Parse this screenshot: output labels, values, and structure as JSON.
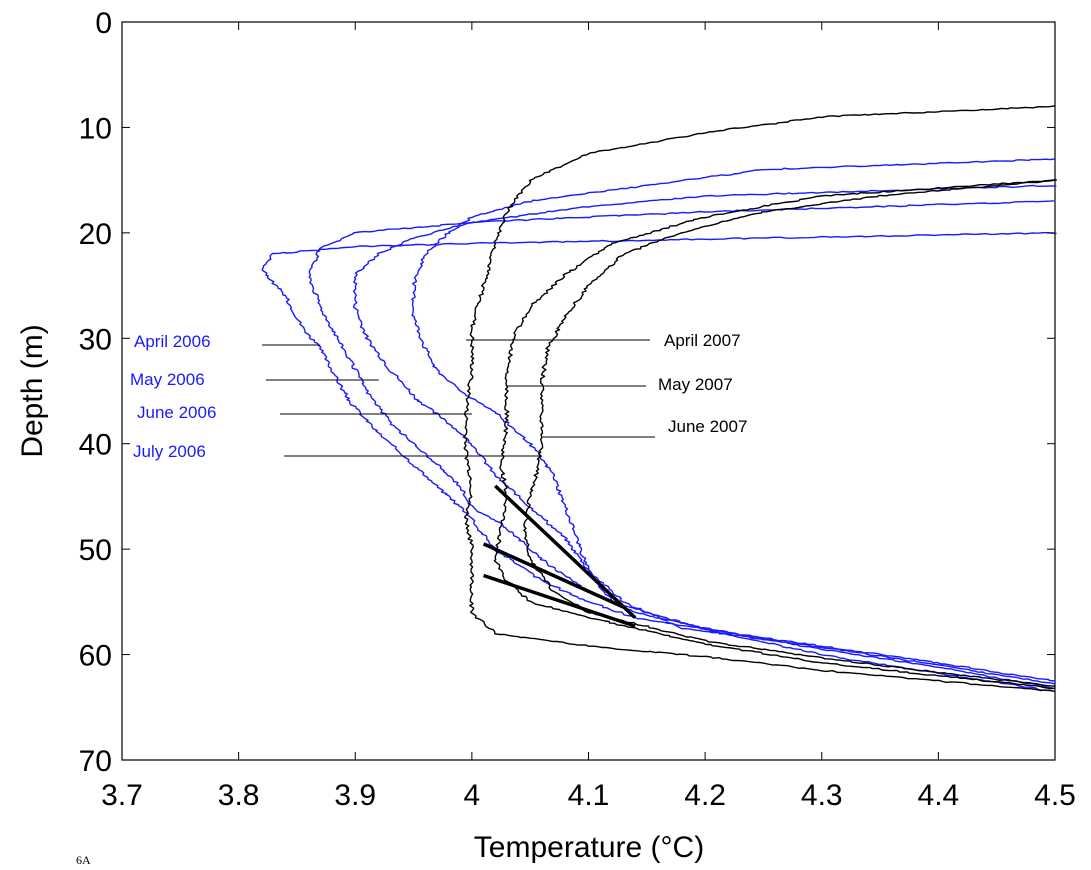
{
  "chart_data": {
    "type": "line",
    "title": "",
    "xlabel": "Temperature (°C)",
    "ylabel": "Depth (m)",
    "xlim": [
      3.7,
      4.5
    ],
    "ylim": [
      70,
      0
    ],
    "y_axis_inverted": true,
    "grid": false,
    "legend": "none",
    "xticks": [
      "3.7",
      "3.8",
      "3.9",
      "4",
      "4.1",
      "4.2",
      "4.3",
      "4.4",
      "4.5"
    ],
    "yticks": [
      "0",
      "10",
      "20",
      "30",
      "40",
      "50",
      "60",
      "70"
    ],
    "colors": {
      "2006": "#1a1aff",
      "2007": "#000000"
    },
    "series": [
      {
        "name": "April 2006",
        "color": "#1a1aff",
        "points": [
          [
            4.5,
            20
          ],
          [
            4.2,
            20.6
          ],
          [
            4.0,
            21.0
          ],
          [
            3.9,
            21.3
          ],
          [
            3.83,
            22.0
          ],
          [
            3.82,
            23.5
          ],
          [
            3.84,
            26
          ],
          [
            3.855,
            29
          ],
          [
            3.87,
            31
          ],
          [
            3.88,
            33
          ],
          [
            3.895,
            36
          ],
          [
            3.92,
            39
          ],
          [
            3.95,
            42
          ],
          [
            3.98,
            45
          ],
          [
            4.0,
            47
          ],
          [
            4.005,
            48
          ],
          [
            4.02,
            50
          ],
          [
            4.06,
            53
          ],
          [
            4.1,
            55
          ],
          [
            4.14,
            56.5
          ],
          [
            4.2,
            57.6
          ],
          [
            4.3,
            60
          ],
          [
            4.4,
            61.8
          ],
          [
            4.5,
            63.5
          ]
        ]
      },
      {
        "name": "May 2006",
        "color": "#1a1aff",
        "points": [
          [
            4.5,
            17
          ],
          [
            4.2,
            18
          ],
          [
            4.1,
            18.5
          ],
          [
            4.0,
            19.0
          ],
          [
            3.9,
            20
          ],
          [
            3.87,
            21.5
          ],
          [
            3.86,
            24
          ],
          [
            3.87,
            27
          ],
          [
            3.885,
            30
          ],
          [
            3.9,
            33
          ],
          [
            3.91,
            35
          ],
          [
            3.93,
            38
          ],
          [
            3.96,
            41
          ],
          [
            3.99,
            44
          ],
          [
            4.0,
            46
          ],
          [
            4.03,
            48
          ],
          [
            4.06,
            51
          ],
          [
            4.1,
            54
          ],
          [
            4.14,
            56
          ],
          [
            4.2,
            57.5
          ],
          [
            4.3,
            59.5
          ],
          [
            4.4,
            61.2
          ],
          [
            4.5,
            63.2
          ]
        ]
      },
      {
        "name": "June 2006",
        "color": "#1a1aff",
        "points": [
          [
            4.5,
            15.5
          ],
          [
            4.2,
            16.5
          ],
          [
            4.1,
            17.5
          ],
          [
            4.0,
            19.0
          ],
          [
            3.95,
            20.5
          ],
          [
            3.92,
            22
          ],
          [
            3.9,
            24
          ],
          [
            3.9,
            27
          ],
          [
            3.91,
            30
          ],
          [
            3.93,
            33
          ],
          [
            3.955,
            36
          ],
          [
            3.98,
            38
          ],
          [
            4.0,
            40
          ],
          [
            4.02,
            43
          ],
          [
            4.05,
            46
          ],
          [
            4.08,
            49
          ],
          [
            4.1,
            52
          ],
          [
            4.13,
            55
          ],
          [
            4.18,
            57.5
          ],
          [
            4.3,
            59.3
          ],
          [
            4.4,
            61
          ],
          [
            4.5,
            62.8
          ]
        ]
      },
      {
        "name": "July 2006",
        "color": "#1a1aff",
        "points": [
          [
            4.5,
            13
          ],
          [
            4.25,
            14
          ],
          [
            4.15,
            15.5
          ],
          [
            4.05,
            17
          ],
          [
            4.0,
            18.5
          ],
          [
            3.98,
            20
          ],
          [
            3.96,
            22
          ],
          [
            3.95,
            25
          ],
          [
            3.95,
            28
          ],
          [
            3.96,
            31
          ],
          [
            3.97,
            33
          ],
          [
            3.99,
            35
          ],
          [
            4.02,
            37
          ],
          [
            4.05,
            40
          ],
          [
            4.07,
            43
          ],
          [
            4.08,
            46
          ],
          [
            4.09,
            49
          ],
          [
            4.1,
            52
          ],
          [
            4.12,
            55
          ],
          [
            4.2,
            57.6
          ],
          [
            4.3,
            59.2
          ],
          [
            4.4,
            60.8
          ],
          [
            4.5,
            62.5
          ]
        ]
      },
      {
        "name": "April 2007",
        "color": "#000000",
        "points": [
          [
            4.5,
            8
          ],
          [
            4.3,
            9
          ],
          [
            4.2,
            10.5
          ],
          [
            4.1,
            12.5
          ],
          [
            4.05,
            15
          ],
          [
            4.03,
            18
          ],
          [
            4.02,
            21
          ],
          [
            4.01,
            25
          ],
          [
            4.0,
            29
          ],
          [
            4.0,
            33
          ],
          [
            3.995,
            37
          ],
          [
            3.995,
            41
          ],
          [
            4.0,
            44
          ],
          [
            3.995,
            47
          ],
          [
            4.0,
            50
          ],
          [
            4.0,
            53
          ],
          [
            4.0,
            56
          ],
          [
            4.02,
            58
          ],
          [
            4.1,
            59.2
          ],
          [
            4.2,
            60.2
          ],
          [
            4.3,
            61.5
          ],
          [
            4.4,
            62.5
          ],
          [
            4.5,
            63.5
          ]
        ]
      },
      {
        "name": "May 2007",
        "color": "#000000",
        "points": [
          [
            4.5,
            15
          ],
          [
            4.3,
            16.5
          ],
          [
            4.2,
            18.5
          ],
          [
            4.12,
            21
          ],
          [
            4.08,
            24
          ],
          [
            4.05,
            27
          ],
          [
            4.035,
            30
          ],
          [
            4.03,
            34
          ],
          [
            4.03,
            38
          ],
          [
            4.025,
            42
          ],
          [
            4.03,
            45
          ],
          [
            4.025,
            48
          ],
          [
            4.02,
            51
          ],
          [
            4.03,
            53
          ],
          [
            4.05,
            55
          ],
          [
            4.1,
            56.5
          ],
          [
            4.2,
            59
          ],
          [
            4.3,
            60.8
          ],
          [
            4.4,
            62
          ],
          [
            4.5,
            63.2
          ]
        ]
      },
      {
        "name": "June 2007",
        "color": "#000000",
        "points": [
          [
            4.5,
            15
          ],
          [
            4.35,
            16.5
          ],
          [
            4.25,
            18
          ],
          [
            4.18,
            20
          ],
          [
            4.13,
            22
          ],
          [
            4.1,
            25
          ],
          [
            4.08,
            28
          ],
          [
            4.065,
            31
          ],
          [
            4.06,
            34
          ],
          [
            4.06,
            37
          ],
          [
            4.06,
            40
          ],
          [
            4.055,
            43
          ],
          [
            4.05,
            45
          ],
          [
            4.045,
            48
          ],
          [
            4.05,
            51
          ],
          [
            4.07,
            54
          ],
          [
            4.1,
            56
          ],
          [
            4.2,
            58.7
          ],
          [
            4.3,
            60.3
          ],
          [
            4.4,
            61.7
          ],
          [
            4.5,
            63.0
          ]
        ]
      }
    ],
    "thick_segments": [
      [
        [
          4.02,
          44
        ],
        [
          4.14,
          56.5
        ]
      ],
      [
        [
          4.01,
          49.5
        ],
        [
          4.13,
          55.5
        ]
      ],
      [
        [
          4.01,
          52.5
        ],
        [
          4.14,
          57.3
        ]
      ]
    ],
    "annotations": [
      {
        "text": "April 2006",
        "color": "#1a1aff"
      },
      {
        "text": "May 2006",
        "color": "#1a1aff"
      },
      {
        "text": "June 2006",
        "color": "#1a1aff"
      },
      {
        "text": "July 2006",
        "color": "#1a1aff"
      },
      {
        "text": "April 2007",
        "color": "#000000"
      },
      {
        "text": "May 2007",
        "color": "#000000"
      },
      {
        "text": "June 2007",
        "color": "#000000"
      }
    ],
    "stray_label": "6A"
  }
}
